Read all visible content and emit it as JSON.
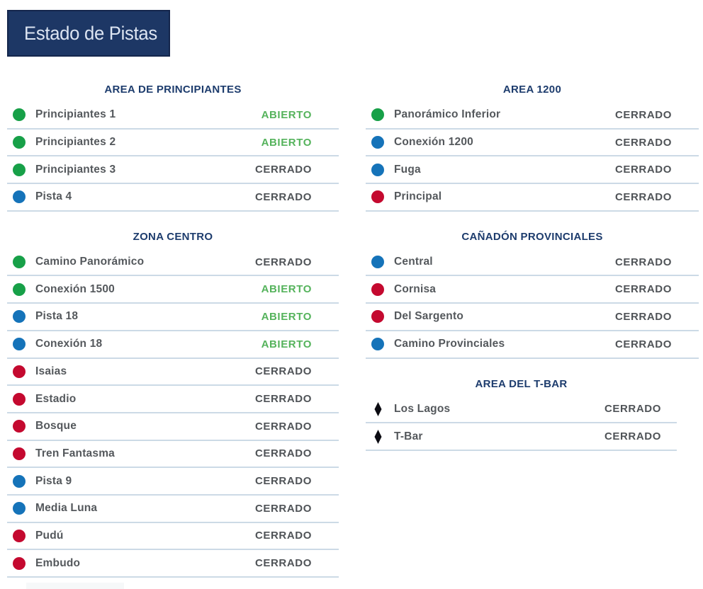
{
  "title": "Estado de Pistas",
  "status_labels": {
    "open": "ABIERTO",
    "closed": "CERRADO"
  },
  "colors": {
    "title_box_navy": "#1d3765",
    "section_header_navy": "#1d3c6d",
    "open_green": "#55b35c",
    "closed_gray": "#4f5357",
    "dot_green": "#17a048",
    "dot_blue": "#1573b9",
    "dot_red": "#c4092f",
    "diamond_black": "#0b0b12",
    "divider": "#ccdae6"
  },
  "icon_legend": {
    "green": "green-circle-icon",
    "blue": "blue-circle-icon",
    "red": "red-circle-icon",
    "diamond": "black-diamond-icon"
  },
  "columns": [
    {
      "sections": [
        {
          "header": "AREA DE PRINCIPIANTES",
          "rows": [
            {
              "name": "Principiantes 1",
              "icon": "green",
              "status": "open"
            },
            {
              "name": "Principiantes 2",
              "icon": "green",
              "status": "open"
            },
            {
              "name": "Principiantes 3",
              "icon": "green",
              "status": "closed"
            },
            {
              "name": "Pista 4",
              "icon": "blue",
              "status": "closed"
            }
          ]
        },
        {
          "header": "ZONA CENTRO",
          "rows": [
            {
              "name": "Camino Panorámico",
              "icon": "green",
              "status": "closed"
            },
            {
              "name": "Conexión 1500",
              "icon": "green",
              "status": "open"
            },
            {
              "name": "Pista 18",
              "icon": "blue",
              "status": "open"
            },
            {
              "name": "Conexión 18",
              "icon": "blue",
              "status": "open"
            },
            {
              "name": "Isaias",
              "icon": "red",
              "status": "closed"
            },
            {
              "name": "Estadio",
              "icon": "red",
              "status": "closed"
            },
            {
              "name": "Bosque",
              "icon": "red",
              "status": "closed"
            },
            {
              "name": "Tren Fantasma",
              "icon": "red",
              "status": "closed"
            },
            {
              "name": "Pista 9",
              "icon": "blue",
              "status": "closed"
            },
            {
              "name": "Media Luna",
              "icon": "blue",
              "status": "closed"
            },
            {
              "name": "Pudú",
              "icon": "red",
              "status": "closed"
            },
            {
              "name": "Embudo",
              "icon": "red",
              "status": "closed"
            }
          ]
        }
      ]
    },
    {
      "sections": [
        {
          "header": "AREA 1200",
          "rows": [
            {
              "name": "Panorámico Inferior",
              "icon": "green",
              "status": "closed"
            },
            {
              "name": "Conexión 1200",
              "icon": "blue",
              "status": "closed"
            },
            {
              "name": "Fuga",
              "icon": "blue",
              "status": "closed"
            },
            {
              "name": "Principal",
              "icon": "red",
              "status": "closed"
            }
          ]
        },
        {
          "header": "CAÑADÓN PROVINCIALES",
          "rows": [
            {
              "name": "Central",
              "icon": "blue",
              "status": "closed"
            },
            {
              "name": "Cornisa",
              "icon": "red",
              "status": "closed"
            },
            {
              "name": "Del Sargento",
              "icon": "red",
              "status": "closed"
            },
            {
              "name": "Camino Provinciales",
              "icon": "blue",
              "status": "closed"
            }
          ]
        },
        {
          "header": "AREA DEL T-BAR",
          "variant": "tbar",
          "rows": [
            {
              "name": "Los Lagos",
              "icon": "diamond",
              "status": "closed"
            },
            {
              "name": "T-Bar",
              "icon": "diamond",
              "status": "closed"
            }
          ]
        }
      ]
    }
  ]
}
